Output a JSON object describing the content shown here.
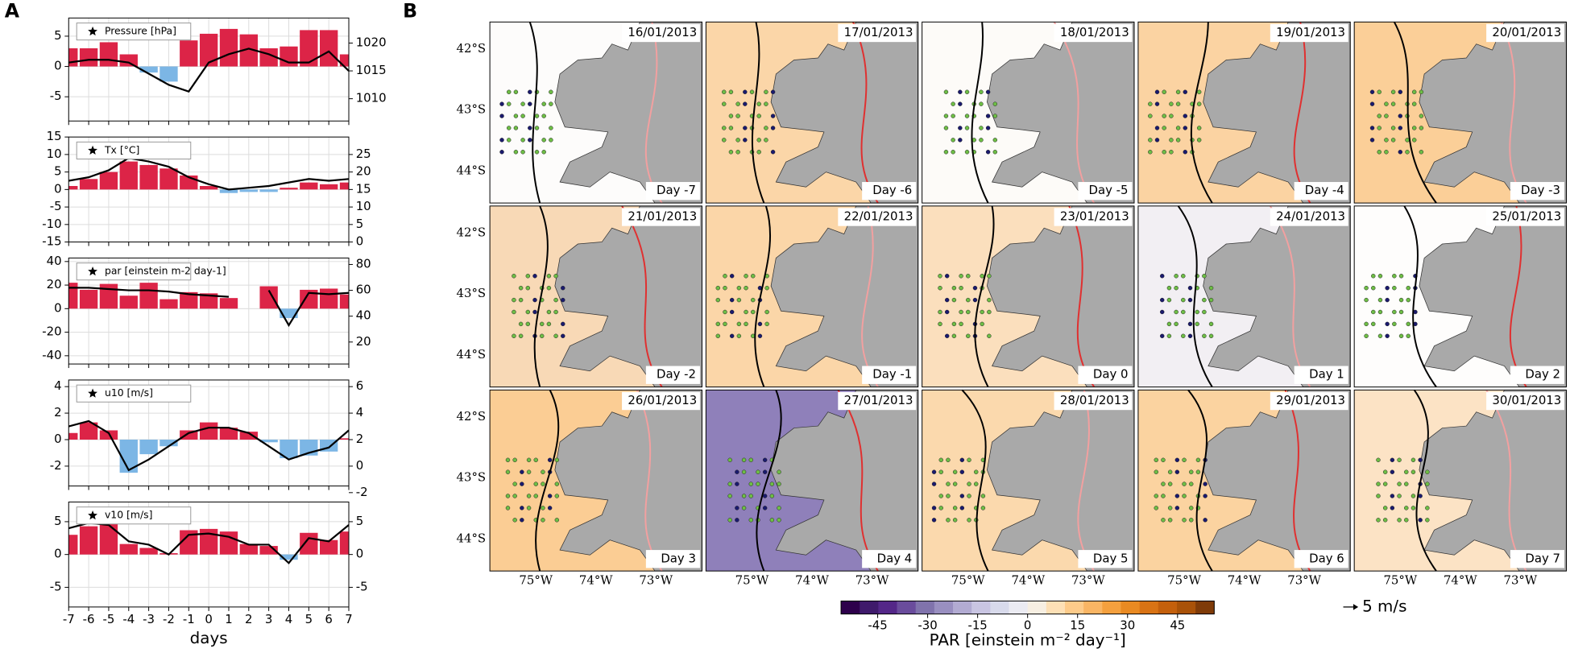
{
  "panel_labels": [
    "A",
    "B"
  ],
  "chart_data": [
    {
      "type": "bar",
      "legend_label": "Pressure [hPa]",
      "x": [
        -7,
        -6,
        -5,
        -4,
        -3,
        -2,
        -1,
        0,
        1,
        2,
        3,
        4,
        5,
        6,
        7
      ],
      "xlim": [
        -7,
        7
      ],
      "xticks": [
        -7,
        -6,
        -5,
        -4,
        -3,
        -2,
        -1,
        0,
        1,
        2,
        3,
        4,
        5,
        6,
        7
      ],
      "values": [
        3,
        3,
        4,
        2,
        -1,
        -2.5,
        4.3,
        5.4,
        6.2,
        5.3,
        3,
        3.3,
        6,
        6,
        2
      ],
      "line_values": [
        1016.5,
        1017,
        1017,
        1016.5,
        1014.5,
        1012.5,
        1011.3,
        1016.5,
        1018,
        1019,
        1018,
        1016.5,
        1016.5,
        1018.5,
        1015
      ],
      "ylim": [
        -9,
        8
      ],
      "yticks": [
        -5,
        0,
        5
      ],
      "y2lim": [
        1006,
        1024.5
      ],
      "y2ticks": [
        1010,
        1015,
        1020
      ],
      "colors": {
        "positive": "#dc2447",
        "negative": "#7cb6e5",
        "line": "#000000"
      },
      "grid": true
    },
    {
      "type": "bar",
      "legend_label": "Tx [°C]",
      "x": [
        -7,
        -6,
        -5,
        -4,
        -3,
        -2,
        -1,
        0,
        1,
        2,
        3,
        4,
        5,
        6,
        7
      ],
      "xlim": [
        -7,
        7
      ],
      "xticks": [
        -7,
        -6,
        -5,
        -4,
        -3,
        -2,
        -1,
        0,
        1,
        2,
        3,
        4,
        5,
        6,
        7
      ],
      "values": [
        1,
        3,
        5,
        8,
        7,
        6,
        4,
        1,
        -1,
        -0.7,
        -0.7,
        0.5,
        2,
        1.5,
        2
      ],
      "line_values": [
        17.5,
        18.5,
        20.5,
        24,
        23,
        21.5,
        18.5,
        16.5,
        15,
        15.5,
        16,
        17,
        18,
        17.5,
        18
      ],
      "ylim": [
        -15,
        15
      ],
      "yticks": [
        -15,
        -10,
        -5,
        0,
        5,
        10,
        15
      ],
      "y2lim": [
        0,
        30
      ],
      "y2ticks": [
        0,
        5,
        10,
        15,
        20,
        25
      ],
      "colors": {
        "positive": "#dc2447",
        "negative": "#7cb6e5",
        "line": "#000000"
      },
      "grid": true
    },
    {
      "type": "bar",
      "legend_label": "par [einstein m-2 day-1]",
      "x": [
        -7,
        -6,
        -5,
        -4,
        -3,
        -2,
        -1,
        0,
        1,
        2,
        3,
        4,
        5,
        6,
        7
      ],
      "xlim": [
        -7,
        7
      ],
      "xticks": [
        -7,
        -6,
        -5,
        -4,
        -3,
        -2,
        -1,
        0,
        1,
        2,
        3,
        4,
        5,
        6,
        7
      ],
      "values": [
        22,
        16,
        21,
        11,
        22,
        8,
        14,
        13,
        9,
        null,
        19,
        -8,
        16,
        17,
        12
      ],
      "line_values": [
        62,
        62,
        61,
        60,
        60,
        59,
        57,
        56,
        55,
        null,
        60,
        33,
        58,
        57,
        58
      ],
      "ylim": [
        -47,
        43
      ],
      "yticks": [
        -40,
        -20,
        0,
        20,
        40
      ],
      "y2lim": [
        3,
        85
      ],
      "y2ticks": [
        20,
        40,
        60,
        80
      ],
      "colors": {
        "positive": "#dc2447",
        "negative": "#7cb6e5",
        "line": "#000000"
      },
      "grid": true
    },
    {
      "type": "bar",
      "legend_label": "u10 [m/s]",
      "x": [
        -7,
        -6,
        -5,
        -4,
        -3,
        -2,
        -1,
        0,
        1,
        2,
        3,
        4,
        5,
        6,
        7
      ],
      "xlim": [
        -7,
        7
      ],
      "xticks": [
        -7,
        -6,
        -5,
        -4,
        -3,
        -2,
        -1,
        0,
        1,
        2,
        3,
        4,
        5,
        6,
        7
      ],
      "values": [
        0.5,
        1.3,
        0.7,
        -2.5,
        -1.1,
        -0.5,
        0.7,
        1.3,
        0.9,
        0.6,
        -0.2,
        -1.4,
        -1.2,
        -0.9,
        0.1
      ],
      "line_values": [
        3,
        3.4,
        2.5,
        -0.3,
        0.5,
        1.5,
        2.5,
        2.9,
        2.9,
        2.5,
        1.5,
        0.5,
        1,
        1.4,
        2.7
      ],
      "ylim": [
        -3.5,
        4.5
      ],
      "yticks": [
        -2,
        0,
        2,
        4
      ],
      "y2lim": [
        -1.5,
        6.5
      ],
      "y2ticks": [
        -2,
        0,
        2,
        4,
        6
      ],
      "colors": {
        "positive": "#dc2447",
        "negative": "#7cb6e5",
        "line": "#000000"
      },
      "grid": true
    },
    {
      "type": "bar",
      "legend_label": "v10 [m/s]",
      "x_label": "days",
      "x": [
        -7,
        -6,
        -5,
        -4,
        -3,
        -2,
        -1,
        0,
        1,
        2,
        3,
        4,
        5,
        6,
        7
      ],
      "xlim": [
        -7,
        7
      ],
      "xticks": [
        -7,
        -6,
        -5,
        -4,
        -3,
        -2,
        -1,
        0,
        1,
        2,
        3,
        4,
        5,
        6,
        7
      ],
      "values": [
        3,
        4.3,
        5,
        1.6,
        1,
        0.2,
        3.7,
        3.9,
        3.5,
        1.6,
        1.3,
        -0.8,
        3.3,
        2.2,
        3.5
      ],
      "line_values": [
        4,
        4.8,
        4.5,
        2,
        1.5,
        0,
        3,
        3.2,
        2.7,
        1.5,
        1.5,
        -1.3,
        2.5,
        2,
        4.5
      ],
      "ylim": [
        -8,
        8
      ],
      "yticks": [
        -5,
        0,
        5
      ],
      "y2lim": [
        -8,
        8
      ],
      "y2ticks": [
        -5,
        0,
        5
      ],
      "colors": {
        "positive": "#dc2447",
        "negative": "#7cb6e5",
        "line": "#000000"
      },
      "grid": true
    },
    {
      "type": "map",
      "panels": [
        {
          "date": "16/01/2013",
          "day": "Day -7"
        },
        {
          "date": "17/01/2013",
          "day": "Day -6"
        },
        {
          "date": "18/01/2013",
          "day": "Day -5"
        },
        {
          "date": "19/01/2013",
          "day": "Day -4"
        },
        {
          "date": "20/01/2013",
          "day": "Day -3"
        },
        {
          "date": "21/01/2013",
          "day": "Day -2"
        },
        {
          "date": "22/01/2013",
          "day": "Day -1"
        },
        {
          "date": "23/01/2013",
          "day": "Day 0"
        },
        {
          "date": "24/01/2013",
          "day": "Day 1"
        },
        {
          "date": "25/01/2013",
          "day": "Day 2"
        },
        {
          "date": "26/01/2013",
          "day": "Day 3"
        },
        {
          "date": "27/01/2013",
          "day": "Day 4"
        },
        {
          "date": "28/01/2013",
          "day": "Day 5"
        },
        {
          "date": "29/01/2013",
          "day": "Day 6"
        },
        {
          "date": "30/01/2013",
          "day": "Day 7"
        }
      ],
      "lat_labels": [
        "42°S",
        "43°S",
        "44°S"
      ],
      "lon_labels": [
        "75°W",
        "74°W",
        "73°W"
      ],
      "colorbar": {
        "label": "PAR [einstein m⁻² day⁻¹]",
        "clim": [
          -56,
          56
        ],
        "ticks": [
          -45,
          -30,
          -15,
          0,
          15,
          30,
          45
        ],
        "colors": [
          "#2d004b",
          "#3f1a6b",
          "#542788",
          "#6a4c9c",
          "#8073ac",
          "#998fc0",
          "#b2abd2",
          "#c9c5e2",
          "#d8daeb",
          "#ebebf2",
          "#f7efe2",
          "#fde0b6",
          "#fdcb8a",
          "#f9b564",
          "#f4a03e",
          "#e98a22",
          "#d97314",
          "#c4600c",
          "#a95208",
          "#7f3b08"
        ]
      },
      "arrow_legend": "5 m/s"
    }
  ]
}
